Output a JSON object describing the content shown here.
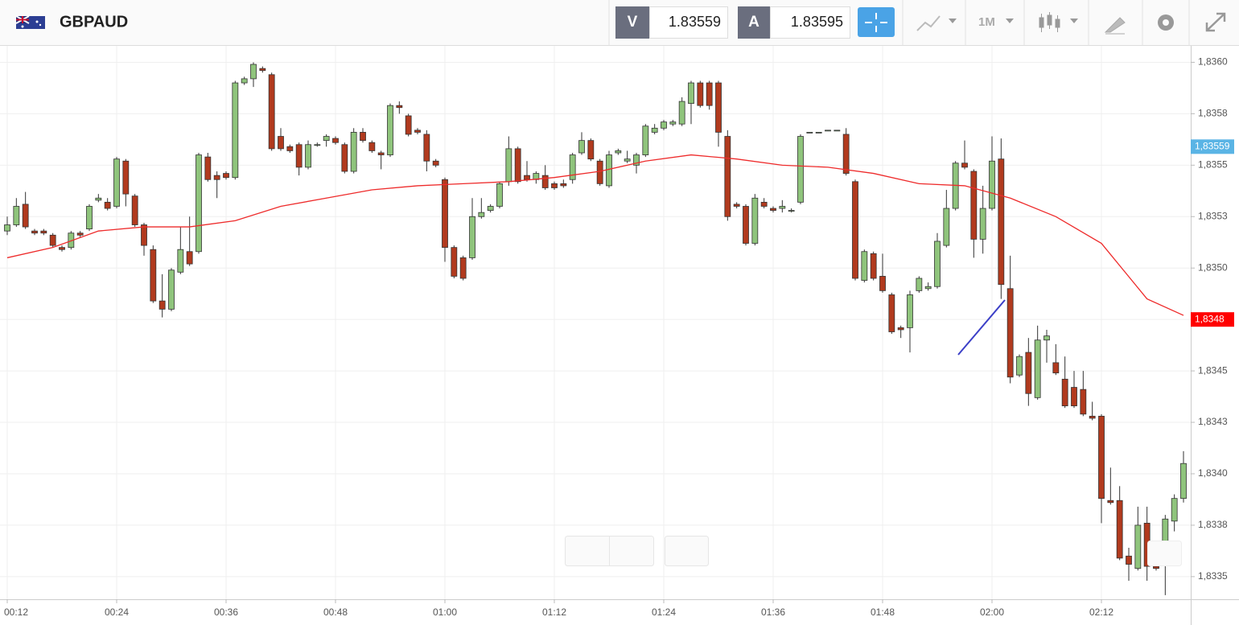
{
  "header": {
    "symbol": "GBPAUD",
    "bid_label": "V",
    "bid": 1.83559,
    "ask_label": "A",
    "ask": 1.83595,
    "interval": "1M"
  },
  "chart_data": {
    "type": "candlestick",
    "x": [
      "00:12",
      "00:13",
      "00:14",
      "00:15",
      "00:16",
      "00:17",
      "00:18",
      "00:19",
      "00:20",
      "00:21",
      "00:22",
      "00:23",
      "00:24",
      "00:25",
      "00:26",
      "00:27",
      "00:28",
      "00:29",
      "00:30",
      "00:31",
      "00:32",
      "00:33",
      "00:34",
      "00:35",
      "00:36",
      "00:37",
      "00:38",
      "00:39",
      "00:40",
      "00:41",
      "00:42",
      "00:43",
      "00:44",
      "00:45",
      "00:46",
      "00:47",
      "00:48",
      "00:49",
      "00:50",
      "00:51",
      "00:52",
      "00:53",
      "00:54",
      "00:55",
      "00:56",
      "00:57",
      "00:58",
      "00:59",
      "01:00",
      "01:01",
      "01:02",
      "01:03",
      "01:04",
      "01:05",
      "01:06",
      "01:07",
      "01:08",
      "01:09",
      "01:10",
      "01:11",
      "01:12",
      "01:13",
      "01:14",
      "01:15",
      "01:16",
      "01:17",
      "01:18",
      "01:19",
      "01:20",
      "01:21",
      "01:22",
      "01:23",
      "01:24",
      "01:25",
      "01:26",
      "01:27",
      "01:28",
      "01:29",
      "01:30",
      "01:31",
      "01:32",
      "01:33",
      "01:34",
      "01:35",
      "01:36",
      "01:37",
      "01:38",
      "01:39",
      "01:40",
      "01:41",
      "01:42",
      "01:43",
      "01:44",
      "01:45",
      "01:46",
      "01:47",
      "01:48",
      "01:49",
      "01:50",
      "01:51",
      "01:52",
      "01:53",
      "01:54",
      "01:55",
      "01:56",
      "01:57",
      "01:58",
      "01:59",
      "02:00",
      "02:01",
      "02:02",
      "02:03",
      "02:04",
      "02:05",
      "02:06",
      "02:07",
      "02:08",
      "02:09",
      "02:10",
      "02:11",
      "02:12",
      "02:13",
      "02:14",
      "02:15",
      "02:16",
      "02:17",
      "02:18",
      "02:19",
      "02:20",
      "02:21"
    ],
    "open": [
      1.83518,
      1.83521,
      1.83531,
      1.83518,
      1.83518,
      1.83516,
      1.8351,
      1.8351,
      1.83517,
      1.83519,
      1.83533,
      1.83532,
      1.8353,
      1.83552,
      1.83535,
      1.83521,
      1.83509,
      1.83484,
      1.8348,
      1.83498,
      1.83508,
      1.83508,
      1.83554,
      1.83545,
      1.83546,
      1.83544,
      1.8359,
      1.83592,
      1.83597,
      1.83594,
      1.83564,
      1.83559,
      1.8356,
      1.83549,
      1.8356,
      1.83562,
      1.83563,
      1.8356,
      1.83547,
      1.83566,
      1.83561,
      1.83556,
      1.83555,
      1.83579,
      1.83574,
      1.83567,
      1.83565,
      1.83552,
      1.83543,
      1.8351,
      1.83505,
      1.83505,
      1.83525,
      1.83528,
      1.8353,
      1.83542,
      1.83558,
      1.83545,
      1.83543,
      1.83545,
      1.83541,
      1.83541,
      1.83543,
      1.83556,
      1.83562,
      1.83552,
      1.8354,
      1.83556,
      1.83552,
      1.8355,
      1.83555,
      1.83566,
      1.83568,
      1.8357,
      1.8357,
      1.8358,
      1.8359,
      1.8359,
      1.8359,
      1.83564,
      1.83531,
      1.8353,
      1.83512,
      1.83532,
      1.83529,
      1.83529,
      1.83528,
      1.83532,
      1.83566,
      1.83566,
      1.83567,
      1.83567,
      1.83565,
      1.83542,
      1.83494,
      1.83507,
      1.83496,
      1.83487,
      1.83471,
      1.83471,
      1.83489,
      1.8349,
      1.83491,
      1.83511,
      1.83529,
      1.83551,
      1.83547,
      1.83514,
      1.83529,
      1.83553,
      1.8349,
      1.83448,
      1.83459,
      1.83437,
      1.83465,
      1.83454,
      1.83446,
      1.83442,
      1.83441,
      1.83428,
      1.83428,
      1.83387,
      1.83387,
      1.8336,
      1.83354,
      1.83376,
      1.83355,
      1.83366,
      1.83377,
      1.83388
    ],
    "high": [
      1.83525,
      1.83534,
      1.83537,
      1.83519,
      1.83519,
      1.83517,
      1.83511,
      1.83518,
      1.83518,
      1.83531,
      1.83536,
      1.83534,
      1.83554,
      1.83553,
      1.83536,
      1.83522,
      1.83511,
      1.83497,
      1.835,
      1.8352,
      1.83525,
      1.83556,
      1.83556,
      1.83547,
      1.83547,
      1.83591,
      1.83593,
      1.836,
      1.83598,
      1.83595,
      1.83568,
      1.8356,
      1.83561,
      1.83562,
      1.83561,
      1.83565,
      1.83564,
      1.83561,
      1.83568,
      1.83568,
      1.83562,
      1.83557,
      1.8358,
      1.83581,
      1.83575,
      1.83568,
      1.83567,
      1.83553,
      1.83544,
      1.83511,
      1.83506,
      1.83534,
      1.83534,
      1.83531,
      1.83542,
      1.83564,
      1.83559,
      1.83552,
      1.83547,
      1.8355,
      1.83542,
      1.83543,
      1.83556,
      1.83566,
      1.83563,
      1.83553,
      1.83557,
      1.83558,
      1.83557,
      1.83556,
      1.8357,
      1.8357,
      1.83572,
      1.83572,
      1.83583,
      1.83591,
      1.83591,
      1.83591,
      1.83591,
      1.83567,
      1.83532,
      1.83531,
      1.83536,
      1.83534,
      1.8353,
      1.83533,
      1.83529,
      1.83565,
      1.83566,
      1.83566,
      1.83567,
      1.83567,
      1.83568,
      1.83543,
      1.83509,
      1.83508,
      1.83507,
      1.83488,
      1.83472,
      1.83489,
      1.83496,
      1.83493,
      1.83517,
      1.83538,
      1.83552,
      1.83562,
      1.83548,
      1.8354,
      1.83564,
      1.83563,
      1.83506,
      1.83458,
      1.83466,
      1.83472,
      1.8347,
      1.83463,
      1.83457,
      1.8345,
      1.8345,
      1.83435,
      1.83429,
      1.83403,
      1.83394,
      1.83364,
      1.83384,
      1.83384,
      1.83356,
      1.8338,
      1.8339,
      1.83411
    ],
    "low": [
      1.83516,
      1.8352,
      1.83519,
      1.83516,
      1.83516,
      1.8351,
      1.83508,
      1.83509,
      1.83515,
      1.83518,
      1.83532,
      1.83528,
      1.83529,
      1.8353,
      1.8352,
      1.83506,
      1.83483,
      1.83476,
      1.83479,
      1.83497,
      1.83501,
      1.83507,
      1.83542,
      1.83534,
      1.83543,
      1.83543,
      1.83589,
      1.83588,
      1.83595,
      1.83557,
      1.83557,
      1.83556,
      1.83545,
      1.83548,
      1.83559,
      1.83559,
      1.8356,
      1.83546,
      1.83546,
      1.83561,
      1.83556,
      1.83548,
      1.83554,
      1.83575,
      1.83564,
      1.83565,
      1.83547,
      1.83549,
      1.83503,
      1.83495,
      1.83494,
      1.83504,
      1.83524,
      1.83527,
      1.83529,
      1.8354,
      1.83541,
      1.83542,
      1.83541,
      1.83538,
      1.83538,
      1.83539,
      1.83541,
      1.83555,
      1.83552,
      1.8354,
      1.83539,
      1.83555,
      1.83551,
      1.83546,
      1.83554,
      1.83565,
      1.83567,
      1.83569,
      1.83569,
      1.8357,
      1.83578,
      1.83577,
      1.83559,
      1.83523,
      1.83529,
      1.83511,
      1.83511,
      1.83529,
      1.83527,
      1.83527,
      1.83527,
      1.83531,
      1.83566,
      1.83566,
      1.83567,
      1.83567,
      1.83545,
      1.83494,
      1.83493,
      1.83494,
      1.83488,
      1.83468,
      1.83466,
      1.83459,
      1.83488,
      1.83489,
      1.8349,
      1.8351,
      1.83528,
      1.83548,
      1.83505,
      1.83507,
      1.83528,
      1.83485,
      1.83444,
      1.83447,
      1.83433,
      1.83436,
      1.83454,
      1.83448,
      1.83432,
      1.83432,
      1.83428,
      1.83426,
      1.83376,
      1.83385,
      1.83358,
      1.83348,
      1.83353,
      1.83348,
      1.83353,
      1.83341,
      1.83372,
      1.83386
    ],
    "close": [
      1.83521,
      1.8353,
      1.8352,
      1.83517,
      1.83517,
      1.83511,
      1.83509,
      1.83517,
      1.83516,
      1.8353,
      1.83534,
      1.83529,
      1.83553,
      1.83536,
      1.83521,
      1.83511,
      1.83484,
      1.8348,
      1.83499,
      1.83509,
      1.83502,
      1.83555,
      1.83543,
      1.83543,
      1.83544,
      1.8359,
      1.83592,
      1.83599,
      1.83596,
      1.83558,
      1.83558,
      1.83557,
      1.83549,
      1.8356,
      1.8356,
      1.83564,
      1.83561,
      1.83547,
      1.83566,
      1.83562,
      1.83557,
      1.83555,
      1.83579,
      1.83578,
      1.83565,
      1.83566,
      1.83552,
      1.8355,
      1.8351,
      1.83496,
      1.83495,
      1.83525,
      1.83527,
      1.8353,
      1.83541,
      1.83558,
      1.83542,
      1.83543,
      1.83546,
      1.83539,
      1.83539,
      1.8354,
      1.83555,
      1.83562,
      1.83553,
      1.83541,
      1.83555,
      1.83557,
      1.83553,
      1.83555,
      1.83569,
      1.83568,
      1.83571,
      1.83571,
      1.83581,
      1.8359,
      1.83579,
      1.83579,
      1.83566,
      1.83525,
      1.8353,
      1.83512,
      1.83534,
      1.8353,
      1.83528,
      1.8353,
      1.83528,
      1.83564,
      1.83566,
      1.83566,
      1.83567,
      1.83567,
      1.83546,
      1.83495,
      1.83508,
      1.83495,
      1.83489,
      1.83469,
      1.8347,
      1.83487,
      1.83495,
      1.83491,
      1.83513,
      1.83529,
      1.83551,
      1.83549,
      1.83514,
      1.83529,
      1.83552,
      1.83492,
      1.83447,
      1.83457,
      1.83439,
      1.83465,
      1.83467,
      1.83449,
      1.83433,
      1.83433,
      1.83429,
      1.83427,
      1.83388,
      1.83386,
      1.83359,
      1.83356,
      1.83375,
      1.83355,
      1.83354,
      1.83378,
      1.83388,
      1.83405
    ],
    "up_color": "#8fc47c",
    "down_color": "#b13a1e",
    "overlay": {
      "color": "#ee2b2b",
      "x": [
        "00:12",
        "00:17",
        "00:22",
        "00:27",
        "00:32",
        "00:37",
        "00:42",
        "00:47",
        "00:52",
        "00:57",
        "01:02",
        "01:07",
        "01:12",
        "01:17",
        "01:22",
        "01:27",
        "01:32",
        "01:37",
        "01:42",
        "01:47",
        "01:52",
        "01:57",
        "02:02",
        "02:07",
        "02:12",
        "02:17",
        "02:21"
      ],
      "values": [
        1.83505,
        1.8351,
        1.83518,
        1.8352,
        1.8352,
        1.83523,
        1.8353,
        1.83534,
        1.83538,
        1.8354,
        1.83541,
        1.83542,
        1.83544,
        1.83547,
        1.83552,
        1.83555,
        1.83553,
        1.8355,
        1.83549,
        1.83546,
        1.83541,
        1.8354,
        1.83534,
        1.83525,
        1.83512,
        1.83485,
        1.83477
      ]
    },
    "ylim": [
      1.83339,
      1.83608
    ],
    "yticks": [
      {
        "value": 1.836,
        "label": "1,8360"
      },
      {
        "value": 1.83575,
        "label": "1,8358"
      },
      {
        "value": 1.8355,
        "label": "1,8355"
      },
      {
        "value": 1.83525,
        "label": "1,8353"
      },
      {
        "value": 1.835,
        "label": "1,8350"
      },
      {
        "value": 1.83475,
        "label": "1,8348"
      },
      {
        "value": 1.8345,
        "label": "1,8345"
      },
      {
        "value": 1.83425,
        "label": "1,8343"
      },
      {
        "value": 1.834,
        "label": "1,8340"
      },
      {
        "value": 1.83375,
        "label": "1,8338"
      },
      {
        "value": 1.8335,
        "label": "1,8335"
      }
    ],
    "xticks": [
      "00:12",
      "00:24",
      "00:36",
      "00:48",
      "01:00",
      "01:12",
      "01:24",
      "01:36",
      "01:48",
      "02:00",
      "02:12"
    ],
    "grid": true,
    "price_tags": [
      {
        "value": 1.83559,
        "label": "1,83559",
        "color": "#5ab4e5"
      },
      {
        "value": 1.83475,
        "label": "1,8348",
        "color": "#ff0000"
      }
    ]
  }
}
